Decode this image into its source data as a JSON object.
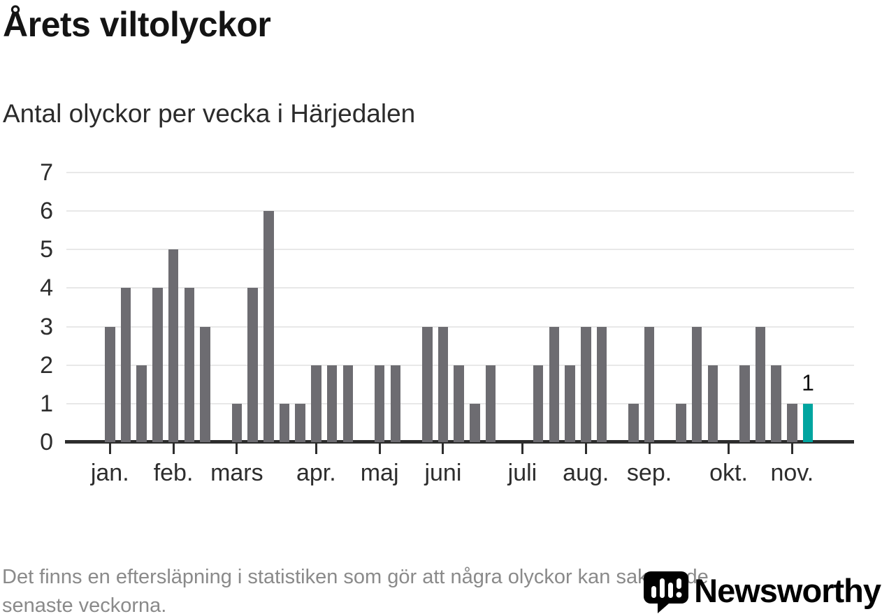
{
  "header": {
    "title": "Årets viltolyckor",
    "subtitle": "Antal olyckor per vecka i Härjedalen"
  },
  "chart_data": {
    "type": "bar",
    "title": "Årets viltolyckor",
    "subtitle": "Antal olyckor per vecka i Härjedalen",
    "x_unit": "vecka",
    "values": [
      3,
      4,
      2,
      4,
      5,
      4,
      3,
      0,
      1,
      4,
      6,
      1,
      1,
      2,
      2,
      2,
      0,
      2,
      2,
      0,
      3,
      3,
      2,
      1,
      2,
      0,
      0,
      2,
      3,
      2,
      3,
      3,
      0,
      1,
      3,
      0,
      1,
      3,
      2,
      0,
      2,
      3,
      2,
      1,
      1
    ],
    "highlight_index": 44,
    "highlight_label": "1",
    "ylim": [
      0,
      7
    ],
    "yticks": [
      "0",
      "1",
      "2",
      "3",
      "4",
      "5",
      "6",
      "7"
    ],
    "month_ticks": [
      {
        "label": "jan.",
        "slot": 0
      },
      {
        "label": "feb.",
        "slot": 4
      },
      {
        "label": "mars",
        "slot": 8
      },
      {
        "label": "apr.",
        "slot": 13
      },
      {
        "label": "maj",
        "slot": 17
      },
      {
        "label": "juni",
        "slot": 21
      },
      {
        "label": "juli",
        "slot": 26
      },
      {
        "label": "aug.",
        "slot": 30
      },
      {
        "label": "sep.",
        "slot": 34
      },
      {
        "label": "okt.",
        "slot": 39
      },
      {
        "label": "nov.",
        "slot": 43
      }
    ],
    "grid": true,
    "legend": null,
    "colors": {
      "bar": "#6d6c71",
      "highlight": "#00a5a0",
      "axis": "#2d2d2d",
      "grid": "#e8e8e8"
    }
  },
  "footer": {
    "note_lines": [
      "Det finns en eftersläpning i statistiken som gör att några olyckor kan saknas de",
      "senaste veckorna."
    ]
  },
  "logo": {
    "wordmark": "Newsworthy",
    "color": "#3ea8a2",
    "icon": "newsworthy-barchart-bubble"
  }
}
